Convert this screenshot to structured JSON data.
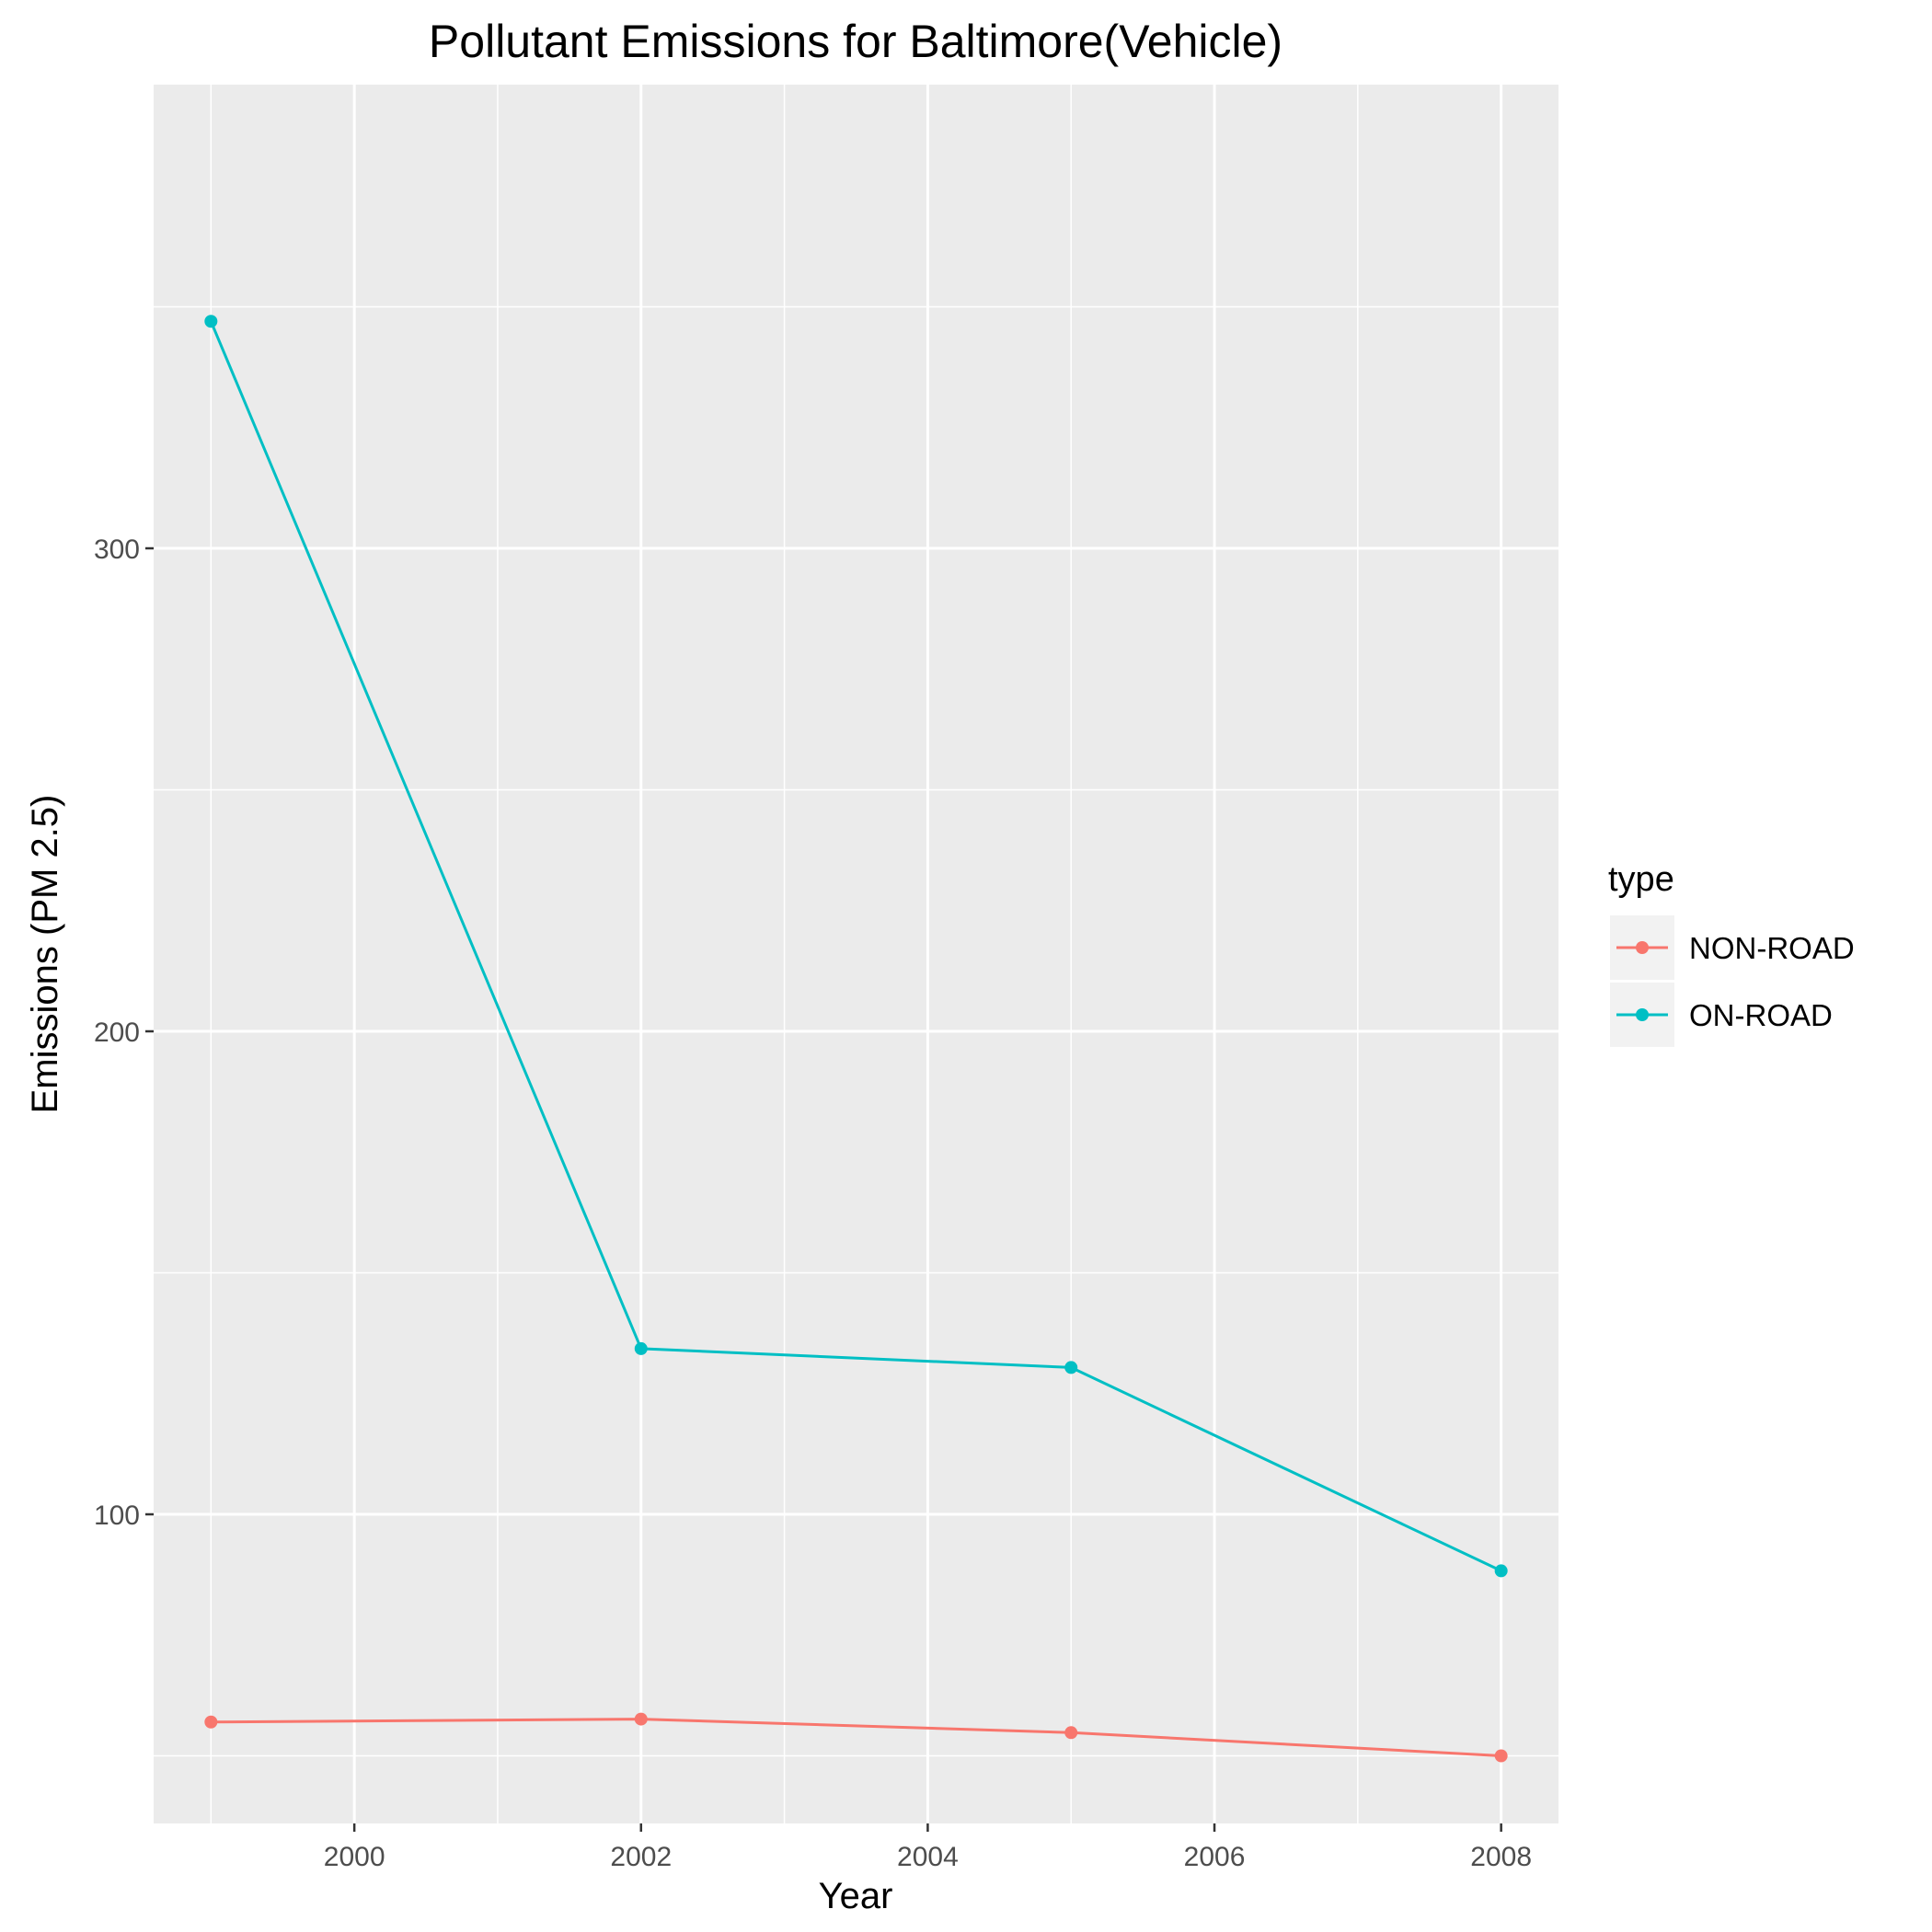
{
  "chart_data": {
    "type": "line",
    "title": "Pollutant Emissions for Baltimore(Vehicle)",
    "xlabel": "Year",
    "ylabel": "Emissions (PM 2.5)",
    "xlim": [
      1998.6,
      2008.4
    ],
    "ylim": [
      36,
      396
    ],
    "x_ticks": [
      2000,
      2002,
      2004,
      2006,
      2008
    ],
    "x_minor_ticks": [
      1999,
      2001,
      2003,
      2005,
      2007
    ],
    "y_ticks": [
      100,
      200,
      300
    ],
    "y_minor_ticks": [
      50,
      150,
      250,
      350
    ],
    "grid": true,
    "legend": {
      "title": "type",
      "position": "right"
    },
    "x": [
      1999,
      2002,
      2005,
      2008
    ],
    "series": [
      {
        "name": "NON-ROAD",
        "color": "#F8766D",
        "values": [
          57.0,
          57.6,
          54.8,
          50.0
        ]
      },
      {
        "name": "ON-ROAD",
        "color": "#00BFC4",
        "values": [
          347.0,
          134.3,
          130.4,
          88.3
        ]
      }
    ]
  }
}
